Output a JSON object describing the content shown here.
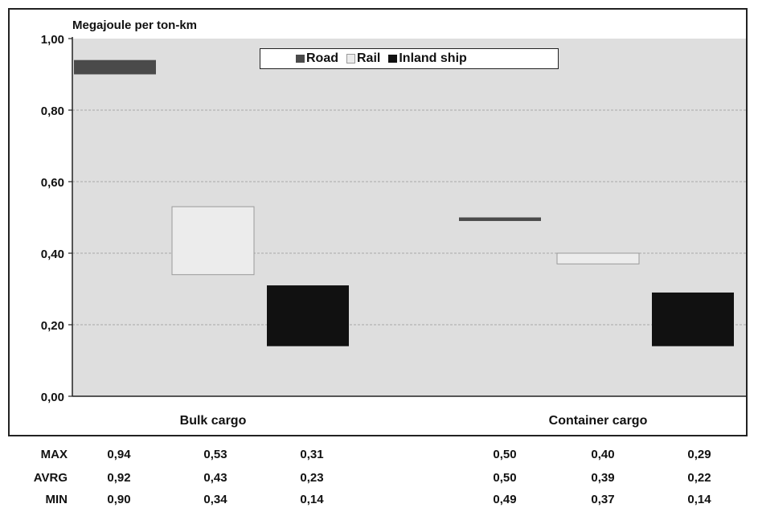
{
  "chart_data": {
    "type": "bar",
    "subtype": "floating-range",
    "ylabel": "Megajoule per ton-km",
    "ylim": [
      0,
      1.0
    ],
    "yticks": [
      "0,00",
      "0,20",
      "0,40",
      "0,60",
      "0,80",
      "1,00"
    ],
    "categories": [
      "Bulk cargo",
      "Container cargo"
    ],
    "legend_position": "top-center",
    "grid": true,
    "series": [
      {
        "name": "Road",
        "color": "#4a4a4a",
        "max": [
          0.94,
          0.5
        ],
        "avrg": [
          0.92,
          0.5
        ],
        "min": [
          0.9,
          0.49
        ]
      },
      {
        "name": "Rail",
        "color": "#ececec",
        "max": [
          0.53,
          0.4
        ],
        "avrg": [
          0.43,
          0.39
        ],
        "min": [
          0.34,
          0.37
        ]
      },
      {
        "name": "Inland ship",
        "color": "#111111",
        "max": [
          0.31,
          0.29
        ],
        "avrg": [
          0.23,
          0.22
        ],
        "min": [
          0.14,
          0.14
        ]
      }
    ]
  },
  "table": {
    "rows": [
      {
        "label": "MAX",
        "values": [
          "0,94",
          "0,53",
          "0,31",
          "0,50",
          "0,40",
          "0,29"
        ]
      },
      {
        "label": "AVRG",
        "values": [
          "0,92",
          "0,43",
          "0,23",
          "0,50",
          "0,39",
          "0,22"
        ]
      },
      {
        "label": "MIN",
        "values": [
          "0,90",
          "0,34",
          "0,14",
          "0,49",
          "0,37",
          "0,14"
        ]
      }
    ]
  }
}
